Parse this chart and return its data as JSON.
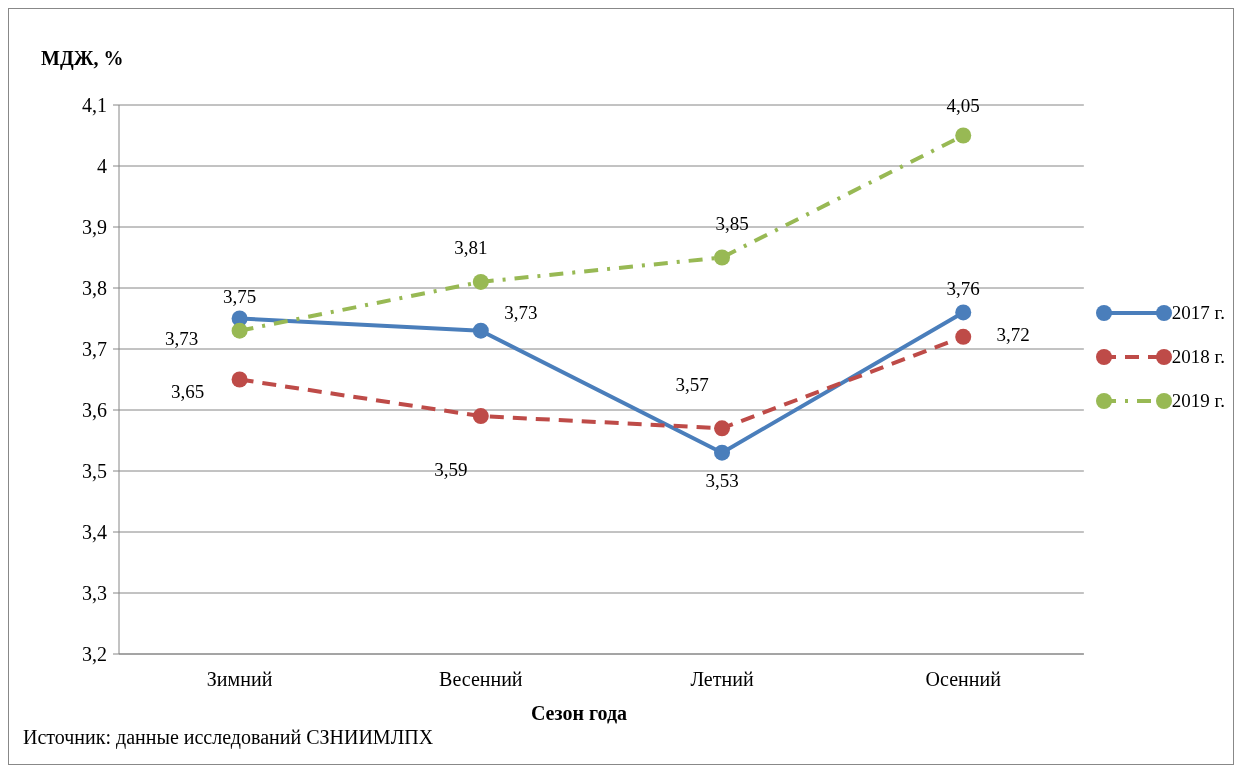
{
  "chart_data": {
    "type": "line",
    "ylabel": "МДЖ, %",
    "xlabel": "Сезон года",
    "categories": [
      "Зимний",
      "Весенний",
      "Летний",
      "Осенний"
    ],
    "series": [
      {
        "name": "2017 г.",
        "color": "#4a7ebb",
        "line_style": "solid",
        "values": [
          3.75,
          3.73,
          3.53,
          3.76
        ],
        "value_labels": [
          "3,75",
          "3,73",
          "3,53",
          "3,76"
        ]
      },
      {
        "name": "2018 г.",
        "color": "#be4b48",
        "line_style": "dashed",
        "values": [
          3.65,
          3.59,
          3.57,
          3.72
        ],
        "value_labels": [
          "3,65",
          "3,59",
          "3,57",
          "3,72"
        ]
      },
      {
        "name": "2019 г.",
        "color": "#98b954",
        "line_style": "dotted",
        "values": [
          3.73,
          3.81,
          3.85,
          4.05
        ],
        "value_labels": [
          "3,73",
          "3,81",
          "3,85",
          "4,05"
        ]
      }
    ],
    "ylim": [
      3.2,
      4.1
    ],
    "yticks": [
      {
        "value": 3.2,
        "label": "3,2"
      },
      {
        "value": 3.3,
        "label": "3,3"
      },
      {
        "value": 3.4,
        "label": "3,4"
      },
      {
        "value": 3.5,
        "label": "3,5"
      },
      {
        "value": 3.6,
        "label": "3,6"
      },
      {
        "value": 3.7,
        "label": "3,7"
      },
      {
        "value": 3.8,
        "label": "3,8"
      },
      {
        "value": 3.9,
        "label": "3,9"
      },
      {
        "value": 4,
        "label": "4"
      },
      {
        "value": 4.1,
        "label": "4,1"
      }
    ],
    "grid": "y",
    "legend": "right",
    "marker": "circle",
    "annotations": [
      "Источник: данные исследований СЗНИИМЛПХ"
    ]
  }
}
